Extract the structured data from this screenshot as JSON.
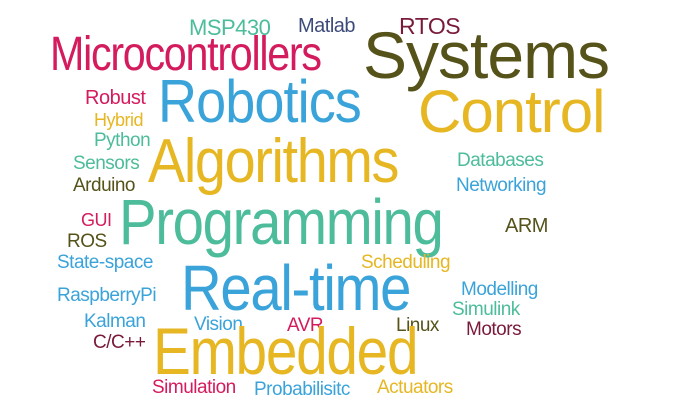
{
  "palette": {
    "teal": "#4dbc9b",
    "navy": "#3d4b7a",
    "maroon": "#7a1a3a",
    "magenta": "#d41b5e",
    "olive": "#55531a",
    "blue": "#3aa3d9",
    "gold": "#e6b722"
  },
  "words": {
    "msp430": "MSP430",
    "matlab": "Matlab",
    "rtos": "RTOS",
    "microcontrollers": "Microcontrollers",
    "systems": "Systems",
    "robotics": "Robotics",
    "control": "Control",
    "robust": "Robust",
    "hybrid": "Hybrid",
    "python": "Python",
    "algorithms": "Algorithms",
    "sensors": "Sensors",
    "databases": "Databases",
    "arduino": "Arduino",
    "networking": "Networking",
    "programming": "Programming",
    "gui": "GUI",
    "arm": "ARM",
    "ros": "ROS",
    "state_space": "State-space",
    "scheduling": "Scheduling",
    "real_time": "Real-time",
    "raspberrypi": "RaspberryPi",
    "modelling": "Modelling",
    "simulink": "Simulink",
    "kalman": "Kalman",
    "vision": "Vision",
    "avr": "AVR",
    "linux": "Linux",
    "motors": "Motors",
    "c_cpp": "C/C++",
    "embedded": "Embedded",
    "simulation": "Simulation",
    "probabilisitc": "Probabilisitc",
    "actuators": "Actuators"
  }
}
